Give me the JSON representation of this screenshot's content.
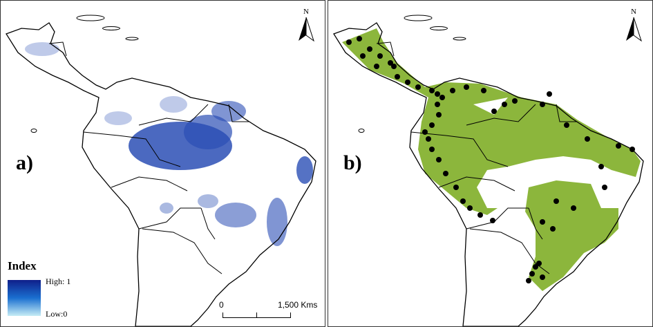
{
  "panels": [
    {
      "label": "a)",
      "north": "N"
    },
    {
      "label": "b)",
      "north": "N"
    }
  ],
  "legend": {
    "title": "Index",
    "high": "High: 1",
    "low": "Low:0"
  },
  "scalebar": {
    "start": "0",
    "end": "1,500 Kms"
  },
  "colors": {
    "index_high": "#0f1f8a",
    "index_low": "#c6ecf5",
    "range": "#8cb63c",
    "points": "#000000"
  }
}
